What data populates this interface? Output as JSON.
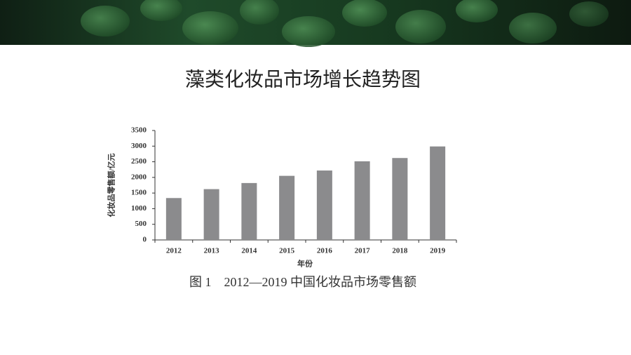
{
  "slide_title": "藻类化妆品市场增长趋势图",
  "chart_data": {
    "type": "bar",
    "title": "图 1　2012—2019 中国化妆品市场零售额",
    "x_label": "年份",
    "y_label": "化妆品零售额/亿元",
    "categories": [
      "2012",
      "2013",
      "2014",
      "2015",
      "2016",
      "2017",
      "2018",
      "2019"
    ],
    "values": [
      1340,
      1625,
      1820,
      2050,
      2220,
      2515,
      2620,
      2990
    ],
    "color": "#8b8b8d",
    "ylim": [
      0,
      3500
    ],
    "yticks": [
      0,
      500,
      1000,
      1500,
      2000,
      2500,
      3000,
      3500
    ],
    "grid": false
  }
}
